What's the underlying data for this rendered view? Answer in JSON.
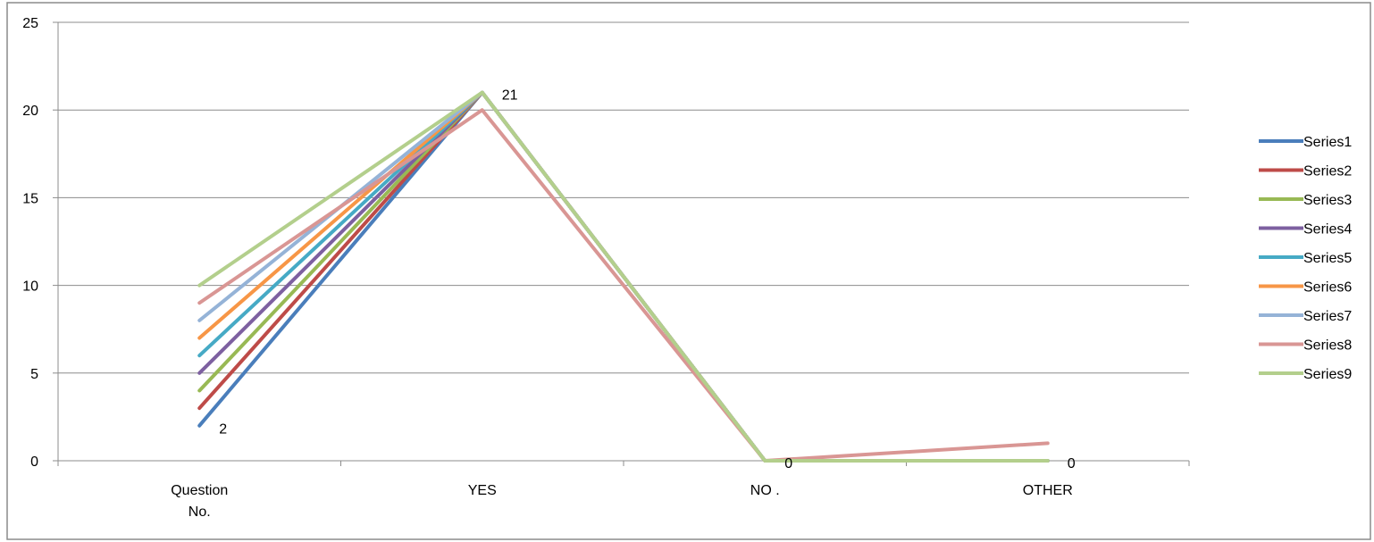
{
  "chart_data": {
    "type": "line",
    "title": "",
    "xlabel": "",
    "ylabel": "",
    "categories": [
      "Question No.",
      "YES",
      "NO .",
      "OTHER"
    ],
    "ylim": [
      0,
      25
    ],
    "yticks": [
      0,
      5,
      10,
      15,
      20,
      25
    ],
    "grid": true,
    "legend": "right",
    "series": [
      {
        "name": "Series1",
        "color": "#4a7ebb",
        "values": [
          2,
          21,
          0,
          0
        ]
      },
      {
        "name": "Series2",
        "color": "#be4b48",
        "values": [
          3,
          21,
          0,
          0
        ]
      },
      {
        "name": "Series3",
        "color": "#98b954",
        "values": [
          4,
          21,
          0,
          0
        ]
      },
      {
        "name": "Series4",
        "color": "#7d60a0",
        "values": [
          5,
          21,
          0,
          0
        ]
      },
      {
        "name": "Series5",
        "color": "#46aac5",
        "values": [
          6,
          21,
          0,
          0
        ]
      },
      {
        "name": "Series6",
        "color": "#f79646",
        "values": [
          7,
          21,
          0,
          0
        ]
      },
      {
        "name": "Series7",
        "color": "#95b3d7",
        "values": [
          8,
          21,
          0,
          0
        ]
      },
      {
        "name": "Series8",
        "color": "#d99694",
        "values": [
          9,
          20,
          0,
          1
        ]
      },
      {
        "name": "Series9",
        "color": "#b3cf8c",
        "values": [
          10,
          21,
          0,
          0
        ]
      }
    ],
    "data_labels": [
      {
        "series": 0,
        "index": 0,
        "text": "2"
      },
      {
        "series": 0,
        "index": 1,
        "text": "21"
      },
      {
        "series": 0,
        "index": 2,
        "text": "0"
      },
      {
        "series": 0,
        "index": 3,
        "text": "0"
      }
    ]
  }
}
